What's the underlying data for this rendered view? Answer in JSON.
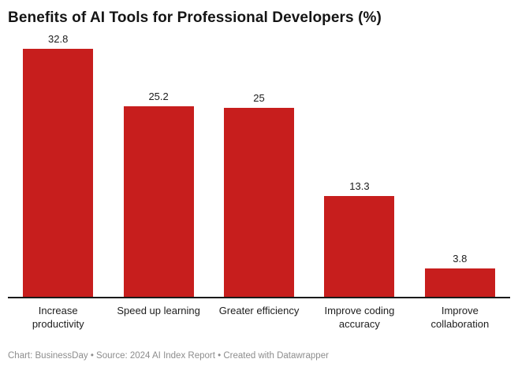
{
  "title": "Benefits of AI Tools for Professional Developers (%)",
  "footer": {
    "text": "Chart: BusinessDay • Source: 2024 AI Index Report • Created with Datawrapper"
  },
  "colors": {
    "bar": "#c71e1d",
    "axis": "#1a1a1a",
    "title_text": "#151515",
    "label_text": "#1d1d1d",
    "footer_text": "#8d8d8d",
    "background": "#ffffff"
  },
  "chart_data": {
    "type": "bar",
    "orientation": "vertical",
    "title": "Benefits of AI Tools for Professional Developers (%)",
    "categories": [
      "Increase productivity",
      "Speed up learning",
      "Greater efficiency",
      "Improve coding accuracy",
      "Improve collaboration"
    ],
    "values": [
      32.8,
      25.2,
      25,
      13.3,
      3.8
    ],
    "value_labels": [
      "32.8",
      "25.2",
      "25",
      "13.3",
      "3.8"
    ],
    "xlabel": "",
    "ylabel": "",
    "ylim": [
      0,
      34
    ],
    "grid": false,
    "legend": false,
    "bar_color": "#c71e1d"
  }
}
